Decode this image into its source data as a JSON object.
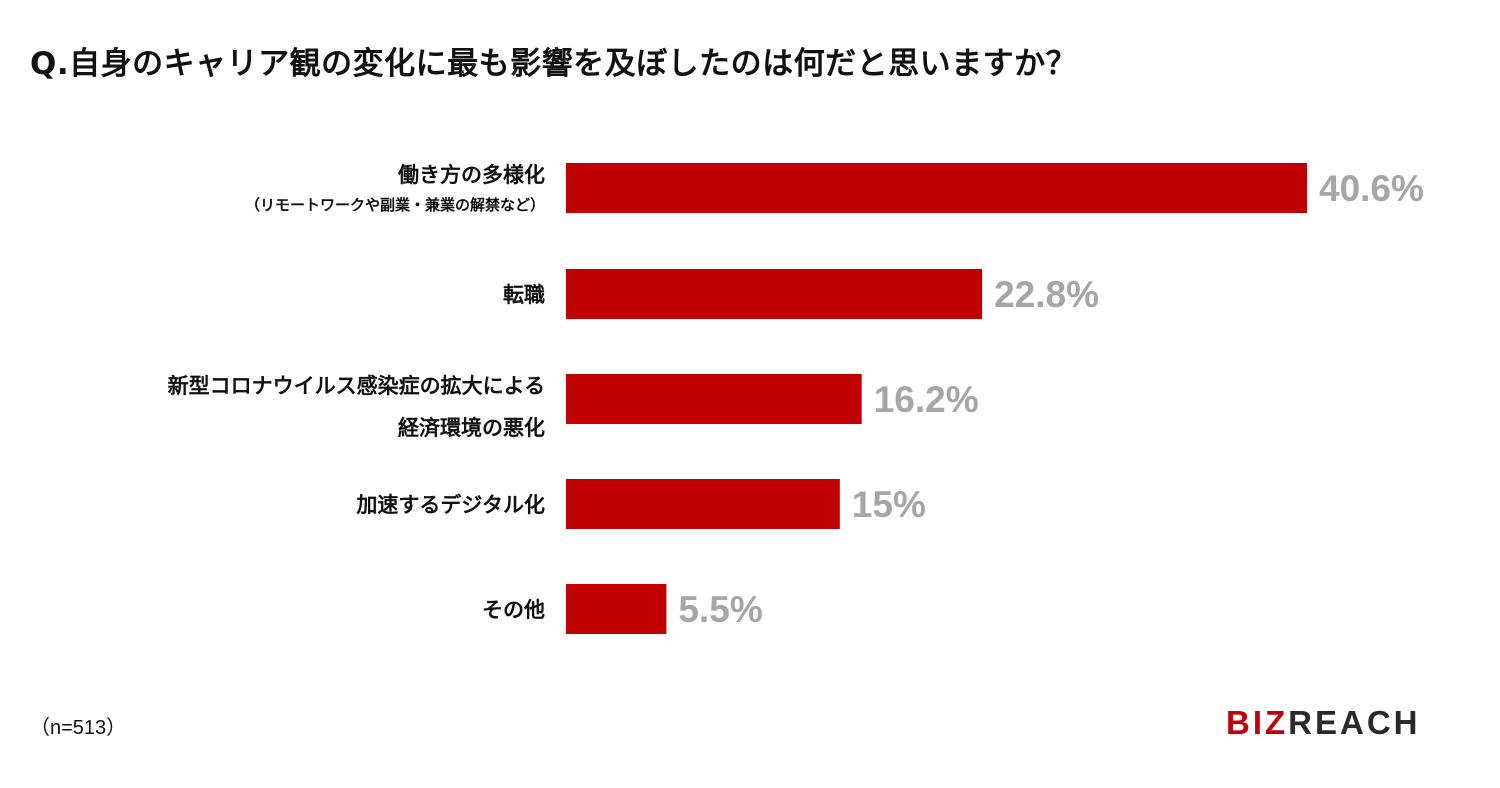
{
  "title": "Q.自身のキャリア観の変化に最も影響を及ぼしたのは何だと思いますか？",
  "footnote": "（n=513）",
  "logo": {
    "accent_text": "BIZ",
    "rest_text": "REACH"
  },
  "colors": {
    "bar": "#c00000",
    "value_label": "#a6a6a6",
    "category_label": "#111111"
  },
  "chart_data": {
    "type": "bar",
    "orientation": "horizontal",
    "categories": [
      [
        "働き方の多様化",
        "（リモートワークや副業・兼業の解禁など）"
      ],
      [
        "転職"
      ],
      [
        "新型コロナウイルス感染症の拡大による",
        "経済環境の悪化"
      ],
      [
        "加速するデジタル化"
      ],
      [
        "その他"
      ]
    ],
    "values": [
      40.6,
      22.8,
      16.2,
      15,
      5.5
    ],
    "value_labels": [
      "40.6%",
      "22.8%",
      "16.2%",
      "15%",
      "5.5%"
    ],
    "xlim": [
      0,
      40.6
    ],
    "grid": false,
    "legend": "none"
  }
}
